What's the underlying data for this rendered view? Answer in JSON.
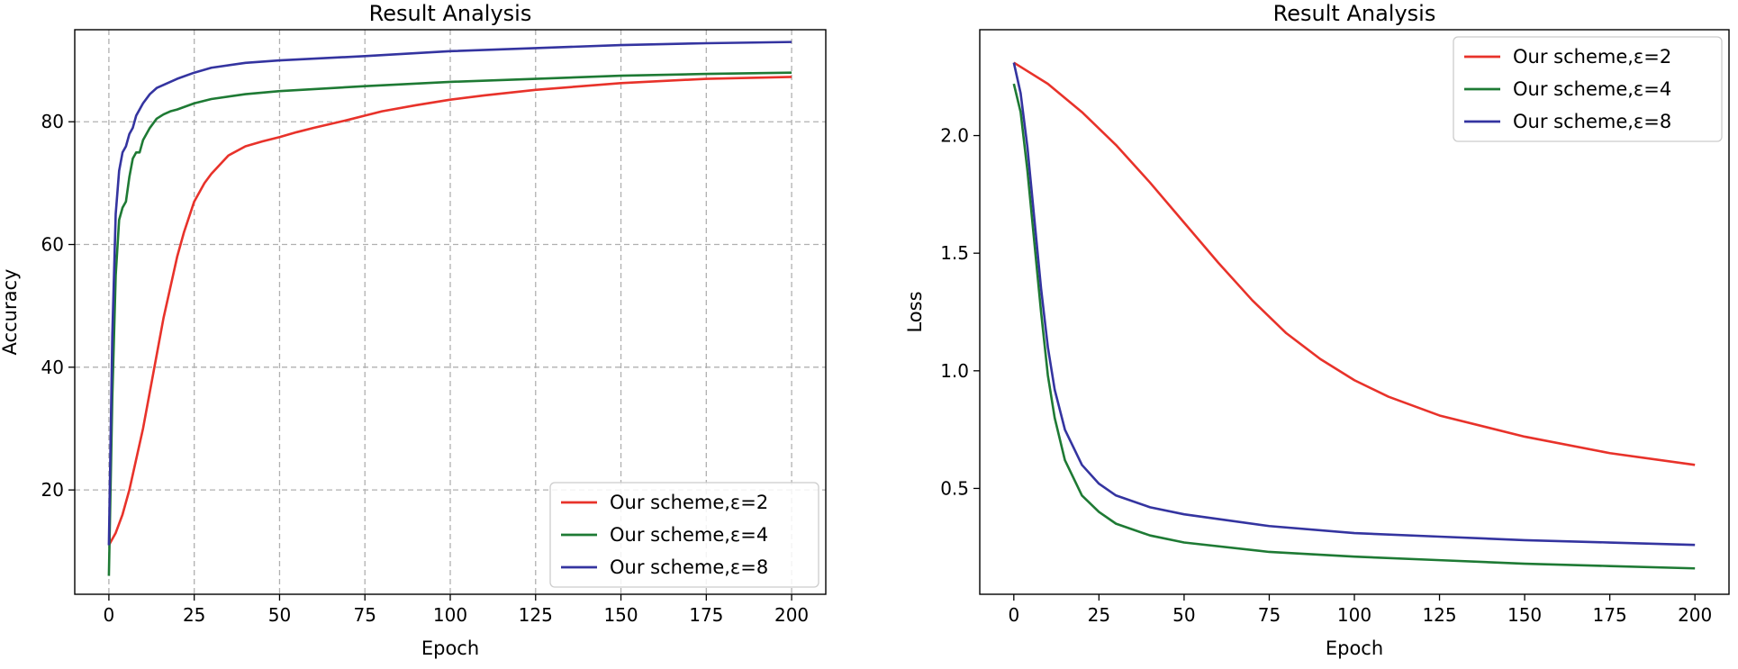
{
  "chart_data": [
    {
      "type": "line",
      "title": "Result Analysis",
      "xlabel": "Epoch",
      "ylabel": "Accuracy",
      "xlim": [
        -10,
        210
      ],
      "ylim": [
        3,
        95
      ],
      "xticks": [
        0,
        25,
        50,
        75,
        100,
        125,
        150,
        175,
        200
      ],
      "yticks": [
        20,
        40,
        60,
        80
      ],
      "grid": true,
      "legend_position": "lower-right",
      "series": [
        {
          "name": "Our scheme,ε=2",
          "color": "#e8322a",
          "x": [
            0,
            2,
            4,
            6,
            8,
            10,
            12,
            14,
            16,
            18,
            20,
            22,
            25,
            28,
            30,
            35,
            40,
            45,
            50,
            55,
            60,
            70,
            75,
            80,
            90,
            100,
            110,
            125,
            150,
            175,
            200
          ],
          "y": [
            11,
            13,
            16,
            20,
            25,
            30,
            36,
            42,
            48,
            53,
            58,
            62,
            67,
            70,
            71.5,
            74.5,
            76,
            76.8,
            77.5,
            78.3,
            79,
            80.3,
            81,
            81.7,
            82.7,
            83.6,
            84.3,
            85.2,
            86.3,
            87,
            87.3
          ]
        },
        {
          "name": "Our scheme,ε=4",
          "color": "#1e7a34",
          "x": [
            0,
            1,
            2,
            3,
            4,
            5,
            6,
            7,
            8,
            9,
            10,
            12,
            14,
            16,
            18,
            20,
            25,
            30,
            40,
            50,
            75,
            100,
            125,
            150,
            175,
            200
          ],
          "y": [
            6,
            35,
            55,
            64,
            66,
            67,
            71,
            74,
            75,
            75,
            77,
            79,
            80.5,
            81.2,
            81.7,
            82,
            83,
            83.7,
            84.5,
            85,
            85.8,
            86.5,
            87,
            87.5,
            87.8,
            88
          ]
        },
        {
          "name": "Our scheme,ε=8",
          "color": "#3434a0",
          "x": [
            0,
            1,
            2,
            3,
            4,
            5,
            6,
            7,
            8,
            10,
            12,
            14,
            16,
            18,
            20,
            25,
            30,
            40,
            50,
            75,
            100,
            125,
            150,
            175,
            200
          ],
          "y": [
            11,
            45,
            65,
            72,
            75,
            76,
            78,
            79,
            81,
            83,
            84.5,
            85.5,
            86,
            86.5,
            87,
            88,
            88.8,
            89.6,
            90,
            90.7,
            91.5,
            92,
            92.5,
            92.8,
            93
          ]
        }
      ]
    },
    {
      "type": "line",
      "title": "Result Analysis",
      "xlabel": "Epoch",
      "ylabel": "Loss",
      "xlim": [
        -10,
        210
      ],
      "ylim": [
        0.05,
        2.45
      ],
      "xticks": [
        0,
        25,
        50,
        75,
        100,
        125,
        150,
        175,
        200
      ],
      "yticks": [
        0.5,
        1.0,
        1.5,
        2.0
      ],
      "ytick_labels": [
        "0.5",
        "1.0",
        "1.5",
        "2.0"
      ],
      "grid": false,
      "legend_position": "top-right",
      "series": [
        {
          "name": "Our scheme,ε=2",
          "color": "#e8322a",
          "x": [
            0,
            10,
            20,
            30,
            40,
            50,
            60,
            70,
            80,
            90,
            100,
            110,
            125,
            150,
            175,
            200
          ],
          "y": [
            2.31,
            2.22,
            2.1,
            1.96,
            1.8,
            1.63,
            1.46,
            1.3,
            1.16,
            1.05,
            0.96,
            0.89,
            0.81,
            0.72,
            0.65,
            0.6
          ]
        },
        {
          "name": "Our scheme,ε=4",
          "color": "#1e7a34",
          "x": [
            0,
            2,
            4,
            6,
            8,
            10,
            12,
            15,
            20,
            25,
            30,
            40,
            50,
            75,
            100,
            125,
            150,
            175,
            200
          ],
          "y": [
            2.22,
            2.1,
            1.85,
            1.55,
            1.25,
            0.98,
            0.8,
            0.62,
            0.47,
            0.4,
            0.35,
            0.3,
            0.27,
            0.23,
            0.21,
            0.195,
            0.18,
            0.17,
            0.16
          ]
        },
        {
          "name": "Our scheme,ε=8",
          "color": "#3434a0",
          "x": [
            0,
            2,
            4,
            6,
            8,
            10,
            12,
            15,
            20,
            25,
            30,
            40,
            50,
            75,
            100,
            125,
            150,
            175,
            200
          ],
          "y": [
            2.31,
            2.18,
            1.95,
            1.65,
            1.35,
            1.1,
            0.92,
            0.75,
            0.6,
            0.52,
            0.47,
            0.42,
            0.39,
            0.34,
            0.31,
            0.295,
            0.28,
            0.27,
            0.26
          ]
        }
      ]
    }
  ]
}
